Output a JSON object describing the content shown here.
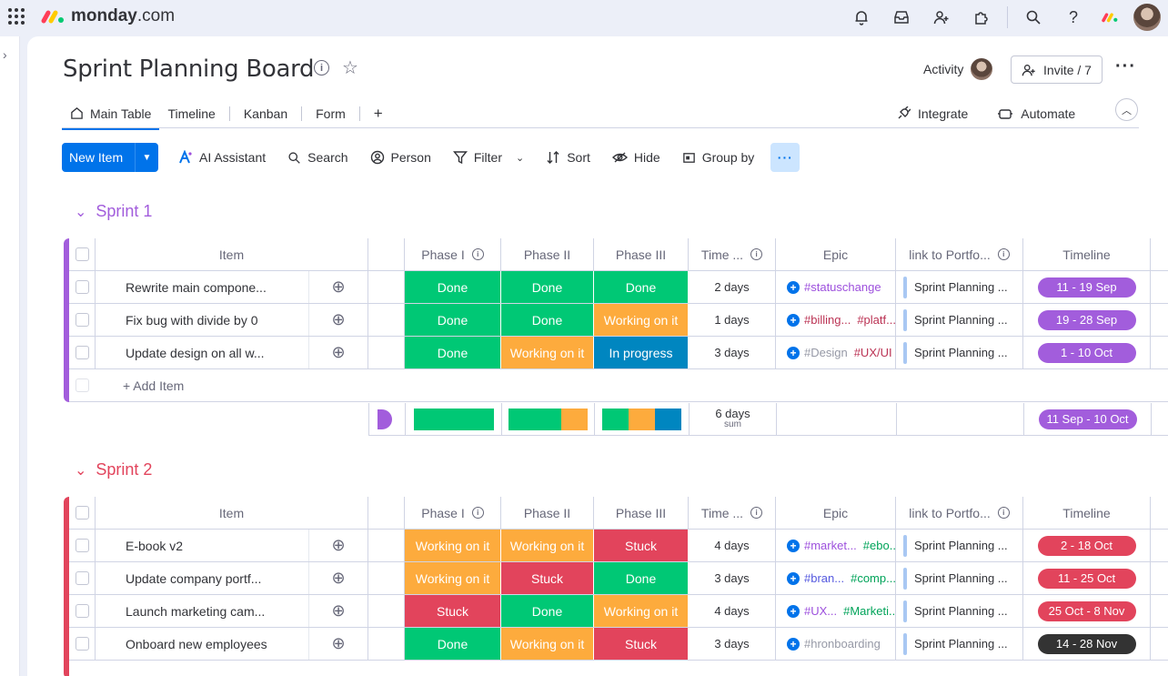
{
  "app": {
    "name_bold": "monday",
    "name_rest": ".com"
  },
  "board": {
    "title": "Sprint Planning Board",
    "activity_label": "Activity",
    "invite_label": "Invite / 7"
  },
  "tabs": [
    "Main Table",
    "Timeline",
    "Kanban",
    "Form"
  ],
  "tab_add": "+",
  "integrations": {
    "integrate": "Integrate",
    "automate": "Automate"
  },
  "toolbar": {
    "new_item": "New Item",
    "ai": "AI Assistant",
    "search": "Search",
    "person": "Person",
    "filter": "Filter",
    "sort": "Sort",
    "hide": "Hide",
    "group_by": "Group by"
  },
  "columns": {
    "item": "Item",
    "phase1": "Phase I",
    "phase2": "Phase II",
    "phase3": "Phase III",
    "time": "Time ...",
    "epic": "Epic",
    "link": "link to Portfo...",
    "timeline": "Timeline"
  },
  "colors": {
    "done": "#00c875",
    "working": "#fdab3d",
    "progress": "#0086c0",
    "stuck": "#e2445c",
    "sprint1": "#a25ddc",
    "sprint2": "#e2445c",
    "dark": "#333333"
  },
  "groups": [
    {
      "name": "Sprint 1",
      "color": "#a25ddc",
      "rows": [
        {
          "item": "Rewrite main compone...",
          "p1": "Done",
          "p2": "Done",
          "p3": "Done",
          "time": "2 days",
          "epic": [
            {
              "t": "#statuschange",
              "c": "#9d50dd"
            }
          ],
          "link": "Sprint Planning ...",
          "timeline": "11 - 19 Sep"
        },
        {
          "item": "Fix bug with divide by 0",
          "p1": "Done",
          "p2": "Done",
          "p3": "Working on it",
          "time": "1 days",
          "epic": [
            {
              "t": "#billing...",
              "c": "#bb3354"
            },
            {
              "t": "#platf...",
              "c": "#bb3354"
            }
          ],
          "link": "Sprint Planning ...",
          "timeline": "19 - 28 Sep"
        },
        {
          "item": "Update design on all w...",
          "p1": "Done",
          "p2": "Working on it",
          "p3": "In progress",
          "time": "3 days",
          "epic": [
            {
              "t": "#Design",
              "c": "#9699a6"
            },
            {
              "t": "#UX/UI",
              "c": "#bb3354"
            }
          ],
          "link": "Sprint Planning ...",
          "timeline": "1 - 10 Oct"
        }
      ],
      "add_item": "+ Add Item",
      "summary": {
        "time": "6 days",
        "time_sub": "sum",
        "timeline": "11 Sep - 10 Oct"
      }
    },
    {
      "name": "Sprint 2",
      "color": "#e2445c",
      "rows": [
        {
          "item": "E-book v2",
          "p1": "Working on it",
          "p2": "Working on it",
          "p3": "Stuck",
          "time": "4 days",
          "epic": [
            {
              "t": "#market...",
              "c": "#9d50dd"
            },
            {
              "t": "#ebo...",
              "c": "#00a359"
            }
          ],
          "link": "Sprint Planning ...",
          "timeline": "2 - 18 Oct"
        },
        {
          "item": "Update company portf...",
          "p1": "Working on it",
          "p2": "Stuck",
          "p3": "Done",
          "time": "3 days",
          "epic": [
            {
              "t": "#bran...",
              "c": "#5559df"
            },
            {
              "t": "#comp...",
              "c": "#00a359"
            }
          ],
          "link": "Sprint Planning ...",
          "timeline": "11 - 25 Oct"
        },
        {
          "item": "Launch marketing cam...",
          "p1": "Stuck",
          "p2": "Done",
          "p3": "Working on it",
          "time": "4 days",
          "epic": [
            {
              "t": "#UX...",
              "c": "#9d50dd"
            },
            {
              "t": "#Marketi...",
              "c": "#00a359"
            }
          ],
          "link": "Sprint Planning ...",
          "timeline": "25 Oct - 8 Nov"
        },
        {
          "item": "Onboard new employees",
          "p1": "Done",
          "p2": "Working on it",
          "p3": "Stuck",
          "time": "3 days",
          "epic": [
            {
              "t": "#hronboarding",
              "c": "#9699a6"
            }
          ],
          "link": "Sprint Planning ...",
          "timeline": "14 - 28 Nov"
        }
      ]
    }
  ]
}
